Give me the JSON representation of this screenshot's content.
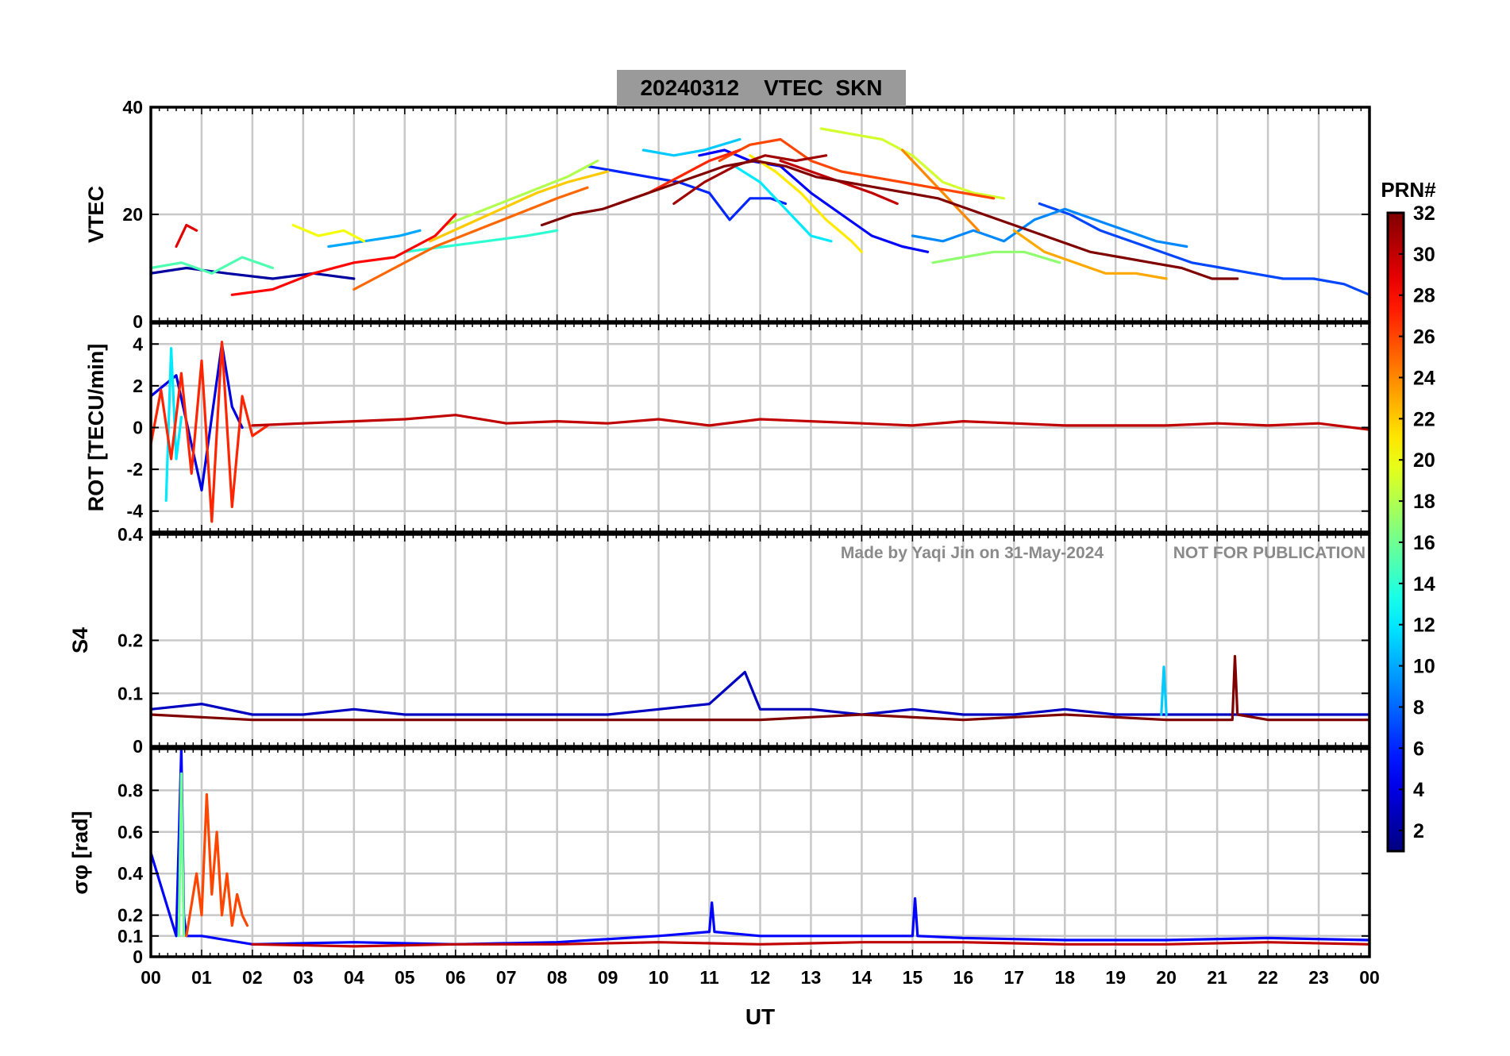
{
  "figure": {
    "title": "20240312    VTEC  SKN",
    "watermark_author": "Made by Yaqi Jin on 31-May-2024",
    "watermark_notice": "NOT FOR PUBLICATION",
    "xlabel": "UT",
    "colorbar_label": "PRN#",
    "colors": {
      "grid": "#c8c8c8",
      "axes": "#000000",
      "watermark": "#8a8a8a",
      "title_bg": "#9a9a9a"
    }
  },
  "chart_data": [
    {
      "type": "line",
      "panel": "vtec",
      "ylabel": "VTEC",
      "ylim": [
        0,
        40
      ],
      "yticks": [
        0,
        20,
        40
      ],
      "xlim": [
        0,
        24
      ],
      "xticklabels": [
        "00",
        "01",
        "02",
        "03",
        "04",
        "05",
        "06",
        "07",
        "08",
        "09",
        "10",
        "11",
        "12",
        "13",
        "14",
        "15",
        "16",
        "17",
        "18",
        "19",
        "20",
        "21",
        "22",
        "23",
        "00"
      ],
      "grid": true,
      "series": [
        {
          "prn": 2,
          "x": [
            0.0,
            0.7,
            1.5,
            2.4,
            3.2,
            4.0
          ],
          "y": [
            9,
            10,
            9,
            8,
            9,
            8
          ]
        },
        {
          "prn": 5,
          "x": [
            10.8,
            11.3,
            11.8,
            12.4,
            13.0,
            13.6,
            14.2,
            14.8,
            15.3
          ],
          "y": [
            31,
            32,
            30,
            29,
            24,
            20,
            16,
            14,
            13
          ]
        },
        {
          "prn": 6,
          "x": [
            8.6,
            9.2,
            9.8,
            10.4,
            11.0,
            11.4,
            11.8,
            12.2,
            12.5
          ],
          "y": [
            29,
            28,
            27,
            26,
            24,
            19,
            23,
            23,
            22
          ]
        },
        {
          "prn": 7,
          "x": [
            17.5,
            18.1,
            18.7,
            19.3,
            19.9,
            20.5,
            21.1,
            21.7,
            22.3,
            22.9,
            23.5,
            24.0
          ],
          "y": [
            22,
            20,
            17,
            15,
            13,
            11,
            10,
            9,
            8,
            8,
            7,
            5
          ]
        },
        {
          "prn": 9,
          "x": [
            15.0,
            15.6,
            16.2,
            16.8,
            17.4,
            18.0,
            18.6,
            19.2,
            19.8,
            20.4
          ],
          "y": [
            16,
            15,
            17,
            15,
            19,
            21,
            19,
            17,
            15,
            14
          ]
        },
        {
          "prn": 10,
          "x": [
            3.5,
            4.2,
            4.9,
            5.3
          ],
          "y": [
            14,
            15,
            16,
            17
          ]
        },
        {
          "prn": 11,
          "x": [
            9.7,
            10.3,
            10.9,
            11.6
          ],
          "y": [
            32,
            31,
            32,
            34
          ]
        },
        {
          "prn": 12,
          "x": [
            11.5,
            12.0,
            12.5,
            13.0,
            13.4
          ],
          "y": [
            29,
            26,
            21,
            16,
            15
          ]
        },
        {
          "prn": 14,
          "x": [
            5.0,
            5.8,
            6.6,
            7.4,
            8.0
          ],
          "y": [
            13,
            14,
            15,
            16,
            17
          ]
        },
        {
          "prn": 15,
          "x": [
            0.0,
            0.6,
            1.2,
            1.8,
            2.4
          ],
          "y": [
            10,
            11,
            9,
            12,
            10
          ]
        },
        {
          "prn": 17,
          "x": [
            15.4,
            16.0,
            16.6,
            17.2,
            17.9
          ],
          "y": [
            11,
            12,
            13,
            13,
            11
          ]
        },
        {
          "prn": 18,
          "x": [
            5.8,
            6.6,
            7.4,
            8.2,
            8.8
          ],
          "y": [
            18,
            21,
            24,
            27,
            30
          ]
        },
        {
          "prn": 19,
          "x": [
            13.2,
            13.8,
            14.4,
            15.0,
            15.6,
            16.2,
            16.8
          ],
          "y": [
            36,
            35,
            34,
            31,
            26,
            24,
            23
          ]
        },
        {
          "prn": 20,
          "x": [
            2.8,
            3.3,
            3.8,
            4.2
          ],
          "y": [
            18,
            16,
            17,
            15
          ]
        },
        {
          "prn": 21,
          "x": [
            11.8,
            12.3,
            12.8,
            13.3,
            13.8,
            14.0
          ],
          "y": [
            31,
            28,
            24,
            19,
            15,
            13
          ]
        },
        {
          "prn": 22,
          "x": [
            5.5,
            6.2,
            6.9,
            7.6,
            8.2,
            9.0
          ],
          "y": [
            15,
            18,
            21,
            24,
            26,
            28
          ]
        },
        {
          "prn": 23,
          "x": [
            17.0,
            17.6,
            18.2,
            18.8,
            19.4,
            20.0
          ],
          "y": [
            17,
            13,
            11,
            9,
            9,
            8
          ]
        },
        {
          "prn": 24,
          "x": [
            14.8,
            15.2,
            15.6,
            16.0,
            16.3
          ],
          "y": [
            32,
            28,
            24,
            20,
            17
          ]
        },
        {
          "prn": 25,
          "x": [
            4.0,
            4.8,
            5.6,
            6.4,
            7.2,
            8.0,
            8.6
          ],
          "y": [
            6,
            10,
            14,
            17,
            20,
            23,
            25
          ]
        },
        {
          "prn": 26,
          "x": [
            11.2,
            11.8,
            12.4,
            13.0,
            13.6,
            14.2,
            14.8,
            15.4,
            16.0,
            16.6
          ],
          "y": [
            30,
            33,
            34,
            30,
            28,
            27,
            26,
            25,
            24,
            23
          ]
        },
        {
          "prn": 27,
          "x": [
            9.2,
            9.8,
            10.4,
            11.0,
            11.6
          ],
          "y": [
            22,
            24,
            27,
            30,
            32
          ]
        },
        {
          "prn": 28,
          "x": [
            1.6,
            2.4,
            3.2,
            4.0,
            4.8,
            5.6,
            6.0
          ],
          "y": [
            5,
            6,
            9,
            11,
            12,
            16,
            20
          ]
        },
        {
          "prn": 29,
          "x": [
            0.5,
            0.7,
            0.9
          ],
          "y": [
            14,
            18,
            17
          ]
        },
        {
          "prn": 30,
          "x": [
            12.4,
            13.0,
            13.6,
            14.2,
            14.7
          ],
          "y": [
            30,
            28,
            26,
            24,
            22
          ]
        },
        {
          "prn": 31,
          "x": [
            10.3,
            10.9,
            11.5,
            12.1,
            12.7,
            13.3
          ],
          "y": [
            22,
            26,
            29,
            31,
            30,
            31
          ]
        },
        {
          "prn": 32,
          "x": [
            7.7,
            8.3,
            8.9,
            9.5,
            10.1,
            10.7,
            11.3,
            11.9,
            12.5,
            13.1,
            13.7,
            14.3,
            14.9,
            15.5,
            16.1,
            16.7,
            17.3,
            17.9,
            18.5,
            19.1,
            19.7,
            20.3,
            20.9,
            21.4
          ],
          "y": [
            18,
            20,
            21,
            23,
            25,
            27,
            29,
            30,
            29,
            27,
            26,
            25,
            24,
            23,
            21,
            19,
            17,
            15,
            13,
            12,
            11,
            10,
            8,
            8
          ]
        }
      ]
    },
    {
      "type": "line",
      "panel": "rot",
      "ylabel": "ROT [TECU/min]",
      "ylim": [
        -5,
        5
      ],
      "yticks": [
        -4,
        -2,
        0,
        2,
        4
      ],
      "xlim": [
        0,
        24
      ],
      "grid": true,
      "series": [
        {
          "prn": 4,
          "x": [
            0.0,
            0.5,
            1.0,
            1.4,
            1.6,
            1.8
          ],
          "y": [
            1.5,
            2.5,
            -3.0,
            4.0,
            1.0,
            0.0
          ]
        },
        {
          "prn": 12,
          "x": [
            0.3,
            0.4,
            0.5,
            0.6
          ],
          "y": [
            -3.5,
            3.8,
            -1.5,
            0.5
          ]
        },
        {
          "prn": 27,
          "x": [
            0.0,
            0.2,
            0.4,
            0.6,
            0.8,
            1.0,
            1.2,
            1.4,
            1.6,
            1.8,
            2.0,
            2.3
          ],
          "y": [
            -0.8,
            1.8,
            -1.5,
            2.6,
            -2.2,
            3.2,
            -4.5,
            4.1,
            -3.8,
            1.5,
            -0.4,
            0.1
          ]
        },
        {
          "prn": 30,
          "x": [
            2.0,
            3.0,
            4.0,
            5.0,
            6.0,
            7.0,
            8.0,
            9.0,
            10.0,
            11.0,
            12.0,
            13.0,
            14.0,
            15.0,
            16.0,
            17.0,
            18.0,
            19.0,
            20.0,
            21.0,
            22.0,
            23.0,
            24.0
          ],
          "y": [
            0.1,
            0.2,
            0.3,
            0.4,
            0.6,
            0.2,
            0.3,
            0.2,
            0.4,
            0.1,
            0.4,
            0.3,
            0.2,
            0.1,
            0.3,
            0.2,
            0.1,
            0.1,
            0.1,
            0.2,
            0.1,
            0.2,
            -0.1
          ]
        }
      ]
    },
    {
      "type": "line",
      "panel": "s4",
      "ylabel": "S4",
      "ylim": [
        0,
        0.4
      ],
      "yticks": [
        0,
        0.1,
        0.2,
        0.4
      ],
      "xlim": [
        0,
        24
      ],
      "grid": true,
      "series": [
        {
          "prn": 3,
          "x": [
            0,
            1,
            2,
            3,
            4,
            5,
            6,
            7,
            8,
            9,
            10,
            11,
            11.7,
            12,
            13,
            14,
            15,
            16,
            17,
            18,
            19,
            20,
            21,
            22,
            23,
            24
          ],
          "y": [
            0.07,
            0.08,
            0.06,
            0.06,
            0.07,
            0.06,
            0.06,
            0.06,
            0.06,
            0.06,
            0.07,
            0.08,
            0.14,
            0.07,
            0.07,
            0.06,
            0.07,
            0.06,
            0.06,
            0.07,
            0.06,
            0.06,
            0.06,
            0.06,
            0.06,
            0.06
          ]
        },
        {
          "prn": 11,
          "x": [
            19.9,
            19.95,
            20.0
          ],
          "y": [
            0.06,
            0.15,
            0.06
          ]
        },
        {
          "prn": 32,
          "x": [
            0,
            2,
            4,
            6,
            8,
            10,
            12,
            14,
            16,
            18,
            20,
            21.3,
            21.35,
            21.4,
            22,
            24
          ],
          "y": [
            0.06,
            0.05,
            0.05,
            0.05,
            0.05,
            0.05,
            0.05,
            0.06,
            0.05,
            0.06,
            0.05,
            0.05,
            0.17,
            0.06,
            0.05,
            0.05
          ]
        }
      ]
    },
    {
      "type": "line",
      "panel": "sigma_phi",
      "ylabel": "σφ [rad]",
      "ylim": [
        0,
        1
      ],
      "yticks": [
        0,
        0.1,
        0.2,
        0.4,
        0.6,
        0.8
      ],
      "xlim": [
        0,
        24
      ],
      "grid": true,
      "series": [
        {
          "prn": 5,
          "x": [
            0.0,
            0.5,
            0.6,
            0.65,
            0.7,
            1.0,
            2.0,
            4.0,
            6.0,
            8.0,
            10.0,
            11.0,
            11.05,
            11.1,
            12.0,
            14.0,
            15.0,
            15.05,
            15.1,
            16.0,
            18.0,
            20.0,
            22.0,
            24.0
          ],
          "y": [
            0.5,
            0.1,
            1.0,
            0.2,
            0.1,
            0.1,
            0.06,
            0.07,
            0.06,
            0.07,
            0.1,
            0.12,
            0.26,
            0.12,
            0.1,
            0.1,
            0.1,
            0.28,
            0.1,
            0.09,
            0.08,
            0.08,
            0.09,
            0.08
          ]
        },
        {
          "prn": 16,
          "x": [
            0.55,
            0.6,
            0.65
          ],
          "y": [
            0.1,
            0.88,
            0.1
          ]
        },
        {
          "prn": 26,
          "x": [
            0.7,
            0.9,
            1.0,
            1.1,
            1.2,
            1.3,
            1.4,
            1.5,
            1.6,
            1.7,
            1.8,
            1.9
          ],
          "y": [
            0.1,
            0.4,
            0.2,
            0.78,
            0.3,
            0.6,
            0.2,
            0.4,
            0.15,
            0.3,
            0.2,
            0.15
          ]
        },
        {
          "prn": 30,
          "x": [
            2.0,
            4.0,
            6.0,
            8.0,
            10.0,
            12.0,
            14.0,
            16.0,
            18.0,
            20.0,
            22.0,
            24.0
          ],
          "y": [
            0.06,
            0.05,
            0.06,
            0.06,
            0.07,
            0.06,
            0.07,
            0.07,
            0.06,
            0.06,
            0.07,
            0.06
          ]
        }
      ]
    },
    {
      "type": "colorbar",
      "label": "PRN#",
      "range": [
        1,
        32
      ],
      "ticks": [
        2,
        4,
        6,
        8,
        10,
        12,
        14,
        16,
        18,
        20,
        22,
        24,
        26,
        28,
        30,
        32
      ],
      "colormap": "jet"
    }
  ]
}
